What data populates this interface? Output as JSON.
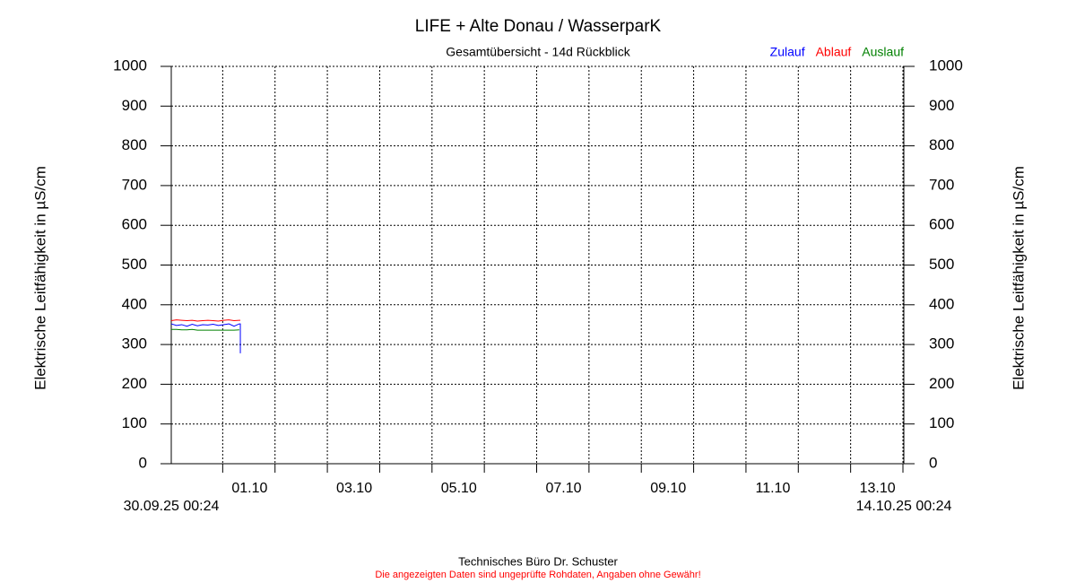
{
  "chart_data": {
    "type": "line",
    "title": "LIFE + Alte Donau / WasserparK",
    "subtitle": "Gesamtübersicht - 14d Rückblick",
    "ylabel": "Elektrische Leitfähigkeit in µS/cm",
    "y2label": "Elektrische Leitfähigkeit in µS/cm",
    "x_start_label": "30.09.25 00:24",
    "x_end_label": "14.10.25 00:24",
    "footer": "Technisches Büro Dr. Schuster",
    "disclaimer": "Die angezeigten Daten sind ungeprüfte Rohdaten, Angaben ohne Gewähr!",
    "xlim": [
      0,
      14
    ],
    "xticks": [
      {
        "value": 0.983,
        "label": "01.10"
      },
      {
        "value": 1.983,
        "label": null
      },
      {
        "value": 2.983,
        "label": "03.10"
      },
      {
        "value": 3.983,
        "label": null
      },
      {
        "value": 4.983,
        "label": "05.10"
      },
      {
        "value": 5.983,
        "label": null
      },
      {
        "value": 6.983,
        "label": "07.10"
      },
      {
        "value": 7.983,
        "label": null
      },
      {
        "value": 8.983,
        "label": "09.10"
      },
      {
        "value": 9.983,
        "label": null
      },
      {
        "value": 10.983,
        "label": "11.10"
      },
      {
        "value": 11.983,
        "label": null
      },
      {
        "value": 12.983,
        "label": "13.10"
      },
      {
        "value": 13.983,
        "label": null
      }
    ],
    "ylim": [
      0,
      1000
    ],
    "yticks": [
      0,
      100,
      200,
      300,
      400,
      500,
      600,
      700,
      800,
      900,
      1000
    ],
    "y2lim": [
      0,
      1000
    ],
    "y2ticks": [
      0,
      100,
      200,
      300,
      400,
      500,
      600,
      700,
      800,
      900,
      1000
    ],
    "grid": true,
    "legend": "top-right",
    "x": [
      0,
      0.1,
      0.2,
      0.3,
      0.4,
      0.5,
      0.6,
      0.7,
      0.8,
      0.9,
      1.0,
      1.1,
      1.2,
      1.3,
      1.32,
      1.32
    ],
    "series": [
      {
        "name": "Zulauf",
        "color": "#0000ff",
        "values": [
          352,
          348,
          350,
          346,
          351,
          347,
          350,
          349,
          351,
          348,
          350,
          352,
          346,
          352,
          352,
          278
        ]
      },
      {
        "name": "Ablauf",
        "color": "#ff0000",
        "values": [
          360,
          362,
          361,
          360,
          361,
          359,
          360,
          361,
          360,
          359,
          361,
          362,
          360,
          361,
          361,
          null
        ]
      },
      {
        "name": "Auslauf",
        "color": "#008000",
        "values": [
          338,
          338,
          337,
          337,
          338,
          336,
          336,
          336,
          336,
          336,
          336,
          336,
          336,
          337,
          null,
          null
        ]
      }
    ]
  }
}
